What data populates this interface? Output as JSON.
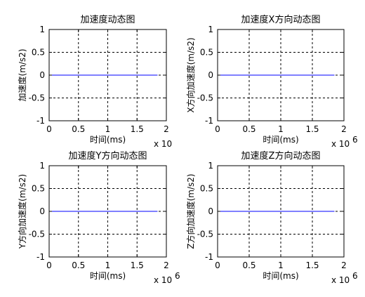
{
  "figure": {
    "background": "#ffffff",
    "axes_face": "#ffffff",
    "line_color": "#0000ff",
    "grid_color": "#000000"
  },
  "chart_data": [
    {
      "type": "line",
      "title": "加速度动态图",
      "xlabel": "时间(ms)",
      "ylabel": "加速度(m/s2)",
      "xlim": [
        0,
        2
      ],
      "ylim": [
        -1,
        1
      ],
      "xticks": [
        "0",
        "0.5",
        "1",
        "1.5",
        "2"
      ],
      "yticks": [
        "1",
        "0.5",
        "0",
        "-0.5",
        "-1"
      ],
      "x_multiplier": "x 10",
      "x_exponent": "",
      "grid": true,
      "series": [
        {
          "x": [
            0,
            1.85
          ],
          "y": [
            0,
            0
          ]
        }
      ]
    },
    {
      "type": "line",
      "title": "加速度X方向动态图",
      "xlabel": "时间(ms)",
      "ylabel": "X方向加速度(m/s2)",
      "xlim": [
        0,
        2
      ],
      "ylim": [
        -1,
        1
      ],
      "xticks": [
        "0",
        "0.5",
        "1",
        "1.5",
        "2"
      ],
      "yticks": [
        "1",
        "0.5",
        "0",
        "-0.5",
        "-1"
      ],
      "x_multiplier": "x 10",
      "x_exponent": "6",
      "grid": true,
      "series": [
        {
          "x": [
            0,
            1.85
          ],
          "y": [
            0,
            0
          ]
        }
      ]
    },
    {
      "type": "line",
      "title": "加速度Y方向动态图",
      "xlabel": "时间(ms)",
      "ylabel": "Y方向加速度(m/s2)",
      "xlim": [
        0,
        2
      ],
      "ylim": [
        -1,
        1
      ],
      "xticks": [
        "0",
        "0.5",
        "1",
        "1.5",
        "2"
      ],
      "yticks": [
        "1",
        "0.5",
        "0",
        "-0.5",
        "-1"
      ],
      "x_multiplier": "x 10",
      "x_exponent": "6",
      "grid": true,
      "series": [
        {
          "x": [
            0,
            1.85
          ],
          "y": [
            0,
            0
          ]
        }
      ]
    },
    {
      "type": "line",
      "title": "加速度Z方向动态图",
      "xlabel": "时间(ms)",
      "ylabel": "Z方向加速度(m/s2)",
      "xlim": [
        0,
        2
      ],
      "ylim": [
        -1,
        1
      ],
      "xticks": [
        "0",
        "0.5",
        "1",
        "1.5",
        "2"
      ],
      "yticks": [
        "1",
        "0.5",
        "0",
        "-0.5",
        "-1"
      ],
      "x_multiplier": "x 10",
      "x_exponent": "6",
      "grid": true,
      "series": [
        {
          "x": [
            0,
            1.85
          ],
          "y": [
            0,
            0
          ]
        }
      ]
    }
  ]
}
